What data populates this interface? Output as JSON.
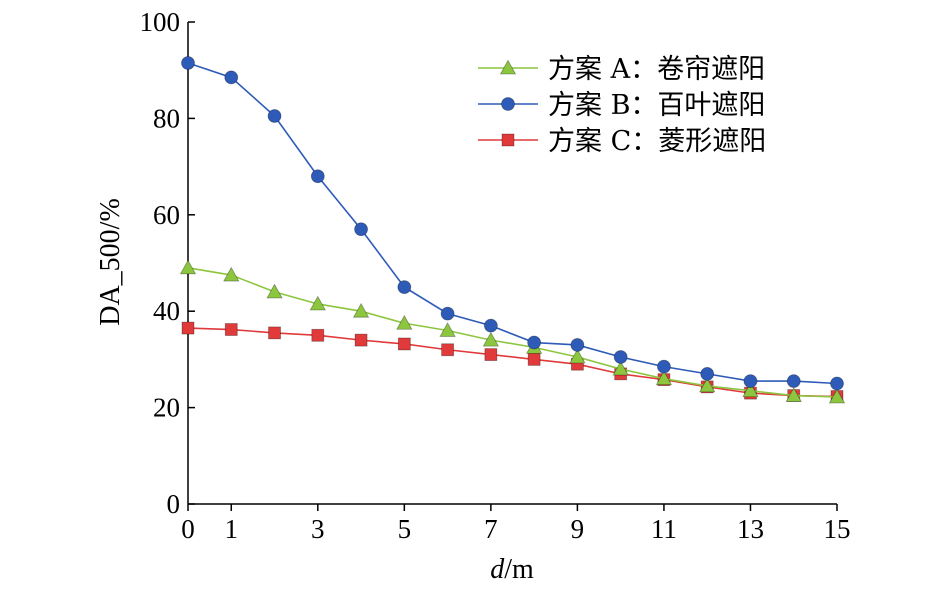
{
  "chart_data": {
    "type": "line",
    "title": "",
    "xlabel": "d/m",
    "xlabel_italic": "d",
    "xlabel_rest": "/m",
    "ylabel": "DA_500/%",
    "xlim": [
      0,
      15
    ],
    "ylim": [
      0,
      100
    ],
    "x_ticks": [
      0,
      1,
      3,
      5,
      7,
      9,
      11,
      13,
      15
    ],
    "y_ticks": [
      0,
      20,
      40,
      60,
      80,
      100
    ],
    "x_tick_labels": [
      "0",
      "1",
      "3",
      "5",
      "7",
      "9",
      "11",
      "13",
      "15"
    ],
    "y_tick_labels": [
      "0",
      "20",
      "40",
      "60",
      "80",
      "100"
    ],
    "grid": false,
    "legend_position": "top-right",
    "x": [
      0,
      1,
      2,
      3,
      4,
      5,
      6,
      7,
      8,
      9,
      10,
      11,
      12,
      13,
      14,
      15
    ],
    "series": [
      {
        "name": "方案 A：卷帘遮阳",
        "color": "#8cc63f",
        "marker": "triangle",
        "values": [
          49.0,
          47.5,
          44.0,
          41.5,
          40.0,
          37.5,
          36.0,
          34.0,
          32.5,
          30.5,
          28.0,
          26.0,
          24.5,
          23.5,
          22.5,
          22.2
        ]
      },
      {
        "name": "方案 B：百叶遮阳",
        "color": "#2e5bb8",
        "marker": "circle",
        "values": [
          91.5,
          88.5,
          80.5,
          68.0,
          57.0,
          45.0,
          39.5,
          37.0,
          33.5,
          33.0,
          30.5,
          28.5,
          27.0,
          25.5,
          25.5,
          25.0
        ]
      },
      {
        "name": "方案 C：菱形遮阳",
        "color": "#e03a3a",
        "marker": "square",
        "values": [
          36.5,
          36.2,
          35.5,
          35.0,
          34.0,
          33.2,
          32.0,
          31.0,
          30.0,
          29.0,
          27.0,
          25.8,
          24.3,
          23.0,
          22.5,
          22.3
        ]
      }
    ]
  }
}
